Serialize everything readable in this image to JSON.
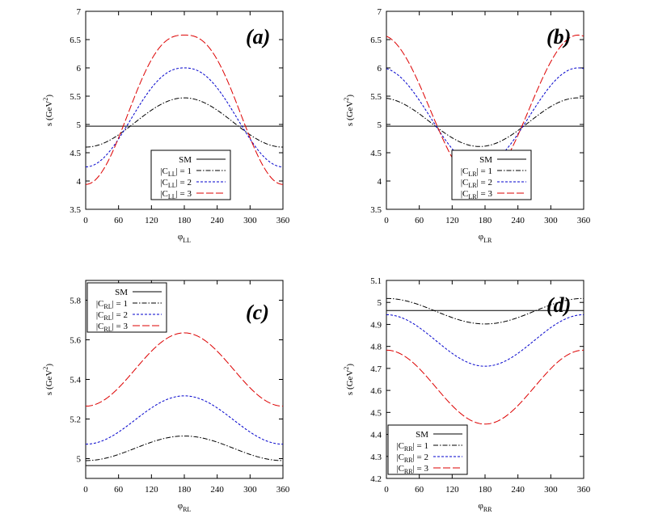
{
  "chart_data": [
    {
      "type": "line",
      "panel_label": "(a)",
      "xlabel": "φ",
      "xlabel_sub": "LL",
      "ylabel": "s (GeV",
      "ylabel_sup": "2",
      "ylabel_end": ")",
      "xlim": [
        0,
        360
      ],
      "ylim": [
        3.5,
        7
      ],
      "xticks": [
        0,
        60,
        120,
        180,
        240,
        300,
        360
      ],
      "yticks": [
        3.5,
        4,
        4.5,
        5,
        5.5,
        6,
        6.5,
        7
      ],
      "ytick_labels": [
        "3.5",
        "4",
        "4.5",
        "5",
        "5.5",
        "6",
        "6.5",
        "7"
      ],
      "legend_position": "bottom-center",
      "series": [
        {
          "name": "SM",
          "name_sub": "",
          "name_suffix": "",
          "color": "#000000",
          "dash": "",
          "mode": "const",
          "value": 4.97
        },
        {
          "name": "|C",
          "name_sub": "LL",
          "name_suffix": "| = 1",
          "color": "#000000",
          "dash": "6,2,1.5,2",
          "mode": "cos",
          "base": 5.035,
          "amp": -0.435,
          "phase": 0,
          "power": 1
        },
        {
          "name": "|C",
          "name_sub": "LL",
          "name_suffix": "| = 2",
          "color": "#0000cc",
          "dash": "3,2",
          "mode": "cos",
          "base": 5.125,
          "amp": -0.875,
          "phase": 0,
          "power": 1.15
        },
        {
          "name": "|C",
          "name_sub": "LL",
          "name_suffix": "| = 3",
          "color": "#dd0000",
          "dash": "9,3",
          "mode": "cos",
          "base": 5.26,
          "amp": -1.32,
          "phase": 0,
          "power": 1.3
        }
      ]
    },
    {
      "type": "line",
      "panel_label": "(b)",
      "xlabel": "φ",
      "xlabel_sub": "LR",
      "ylabel": "s (GeV",
      "ylabel_sup": "2",
      "ylabel_end": ")",
      "xlim": [
        0,
        360
      ],
      "ylim": [
        3.5,
        7
      ],
      "xticks": [
        0,
        60,
        120,
        180,
        240,
        300,
        360
      ],
      "yticks": [
        3.5,
        4,
        4.5,
        5,
        5.5,
        6,
        6.5,
        7
      ],
      "ytick_labels": [
        "3.5",
        "4",
        "4.5",
        "5",
        "5.5",
        "6",
        "6.5",
        "7"
      ],
      "legend_position": "bottom-right",
      "series": [
        {
          "name": "SM",
          "name_sub": "",
          "name_suffix": "",
          "color": "#000000",
          "dash": "",
          "mode": "const",
          "value": 4.97
        },
        {
          "name": "|C",
          "name_sub": "LR",
          "name_suffix": "| = 1",
          "color": "#000000",
          "dash": "6,2,1.5,2",
          "mode": "cos",
          "base": 5.04,
          "amp": -0.43,
          "phase": 170,
          "power": 1
        },
        {
          "name": "|C",
          "name_sub": "LR",
          "name_suffix": "| = 2",
          "color": "#0000cc",
          "dash": "3,2",
          "mode": "cos",
          "base": 5.13,
          "amp": -0.87,
          "phase": 170,
          "power": 1
        },
        {
          "name": "|C",
          "name_sub": "LR",
          "name_suffix": "| = 3",
          "color": "#dd0000",
          "dash": "9,3",
          "mode": "cos",
          "base": 5.26,
          "amp": -1.32,
          "phase": 170,
          "power": 1
        }
      ]
    },
    {
      "type": "line",
      "panel_label": "(c)",
      "xlabel": "φ",
      "xlabel_sub": "RL",
      "ylabel": "s (GeV",
      "ylabel_sup": "2",
      "ylabel_end": ")",
      "xlim": [
        0,
        360
      ],
      "ylim": [
        4.9,
        5.9
      ],
      "xticks": [
        0,
        60,
        120,
        180,
        240,
        300,
        360
      ],
      "yticks": [
        5.0,
        5.2,
        5.4,
        5.6,
        5.8
      ],
      "ytick_labels": [
        "5",
        "5.2",
        "5.4",
        "5.6",
        "5.8"
      ],
      "legend_position": "top-left",
      "series": [
        {
          "name": "SM",
          "name_sub": "",
          "name_suffix": "",
          "color": "#000000",
          "dash": "",
          "mode": "const",
          "value": 4.965
        },
        {
          "name": "|C",
          "name_sub": "RL",
          "name_suffix": "| = 1",
          "color": "#000000",
          "dash": "6,2,1.5,2",
          "mode": "cos",
          "base": 5.052,
          "amp": -0.062,
          "phase": 0,
          "power": 1
        },
        {
          "name": "|C",
          "name_sub": "RL",
          "name_suffix": "| = 2",
          "color": "#0000cc",
          "dash": "3,2",
          "mode": "cos",
          "base": 5.195,
          "amp": -0.122,
          "phase": 0,
          "power": 1
        },
        {
          "name": "|C",
          "name_sub": "RL",
          "name_suffix": "| = 3",
          "color": "#dd0000",
          "dash": "9,3",
          "mode": "cos",
          "base": 5.45,
          "amp": -0.185,
          "phase": 0,
          "power": 1
        }
      ]
    },
    {
      "type": "line",
      "panel_label": "(d)",
      "xlabel": "φ",
      "xlabel_sub": "RR",
      "ylabel": "s (GeV",
      "ylabel_sup": "2",
      "ylabel_end": ")",
      "xlim": [
        0,
        360
      ],
      "ylim": [
        4.2,
        5.1
      ],
      "xticks": [
        0,
        60,
        120,
        180,
        240,
        300,
        360
      ],
      "yticks": [
        4.2,
        4.3,
        4.4,
        4.5,
        4.6,
        4.7,
        4.8,
        4.9,
        5.0,
        5.1
      ],
      "ytick_labels": [
        "4.2",
        "4.3",
        "4.4",
        "4.5",
        "4.6",
        "4.7",
        "4.8",
        "4.9",
        "5",
        "5.1"
      ],
      "legend_position": "bottom-left",
      "series": [
        {
          "name": "SM",
          "name_sub": "",
          "name_suffix": "",
          "color": "#000000",
          "dash": "",
          "mode": "const",
          "value": 4.963
        },
        {
          "name": "|C",
          "name_sub": "RR",
          "name_suffix": "| = 1",
          "color": "#000000",
          "dash": "6,2,1.5,2",
          "mode": "cos",
          "base": 4.96,
          "amp": 0.058,
          "phase": 0,
          "power": 1
        },
        {
          "name": "|C",
          "name_sub": "RR",
          "name_suffix": "| = 2",
          "color": "#0000cc",
          "dash": "3,2",
          "mode": "cos",
          "base": 4.827,
          "amp": 0.117,
          "phase": 0,
          "power": 1
        },
        {
          "name": "|C",
          "name_sub": "RR",
          "name_suffix": "| = 3",
          "color": "#dd0000",
          "dash": "9,3",
          "mode": "cos",
          "base": 4.615,
          "amp": 0.168,
          "phase": 0,
          "power": 1
        }
      ]
    }
  ]
}
